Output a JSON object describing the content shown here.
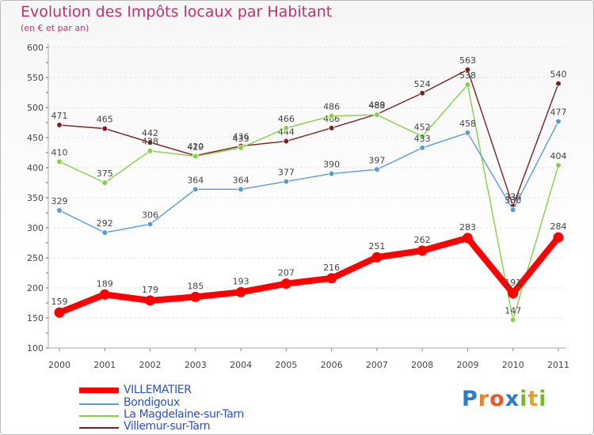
{
  "title": "Evolution des Impôts locaux par Habitant",
  "subtitle": "(en € et par an)",
  "logo": {
    "text": "Proxiti",
    "letters": [
      "P",
      "r",
      "o",
      "x",
      "i",
      "t",
      "i"
    ],
    "colors": [
      "#2a7bd0",
      "#e8832a",
      "#e85a2a",
      "#2a7bd0",
      "#7cb82f",
      "#e8a02a",
      "#7cb82f"
    ]
  },
  "chart_data": {
    "type": "line",
    "title": "Evolution des Impôts locaux par Habitant",
    "ylabel": "(en € et par an)",
    "xlabel": "",
    "ylim": [
      100,
      600
    ],
    "yticks": [
      100,
      150,
      200,
      250,
      300,
      350,
      400,
      450,
      500,
      550,
      600
    ],
    "categories": [
      "2000",
      "2001",
      "2002",
      "2003",
      "2004",
      "2005",
      "2006",
      "2007",
      "2008",
      "2009",
      "2010",
      "2011"
    ],
    "series": [
      {
        "name": "Villemur-sur-Tarn",
        "color": "#7a2020",
        "values": [
          471,
          465,
          442,
          420,
          436,
          444,
          466,
          489,
          524,
          563,
          336,
          540
        ]
      },
      {
        "name": "La Magdelaine-sur-Tarn",
        "color": "#86cf4a",
        "values": [
          410,
          375,
          428,
          419,
          433,
          466,
          486,
          488,
          452,
          538,
          147,
          404
        ]
      },
      {
        "name": "Bondigoux",
        "color": "#5a9bd5",
        "values": [
          329,
          292,
          306,
          364,
          364,
          377,
          390,
          397,
          433,
          458,
          330,
          477
        ]
      },
      {
        "name": "VILLEMATIER",
        "color": "#ff0000",
        "values": [
          159,
          189,
          179,
          185,
          193,
          207,
          216,
          251,
          262,
          283,
          191,
          284
        ]
      }
    ]
  },
  "legend": [
    {
      "name": "VILLEMATIER",
      "color": "#ff0000",
      "text_color": "#2e4fcf"
    },
    {
      "name": "Bondigoux",
      "color": "#5a9bd5",
      "text_color": "#2e4fcf"
    },
    {
      "name": "La Magdelaine-sur-Tarn",
      "color": "#86cf4a",
      "text_color": "#2e4fcf"
    },
    {
      "name": "Villemur-sur-Tarn",
      "color": "#7a2020",
      "text_color": "#2e4fcf"
    }
  ]
}
